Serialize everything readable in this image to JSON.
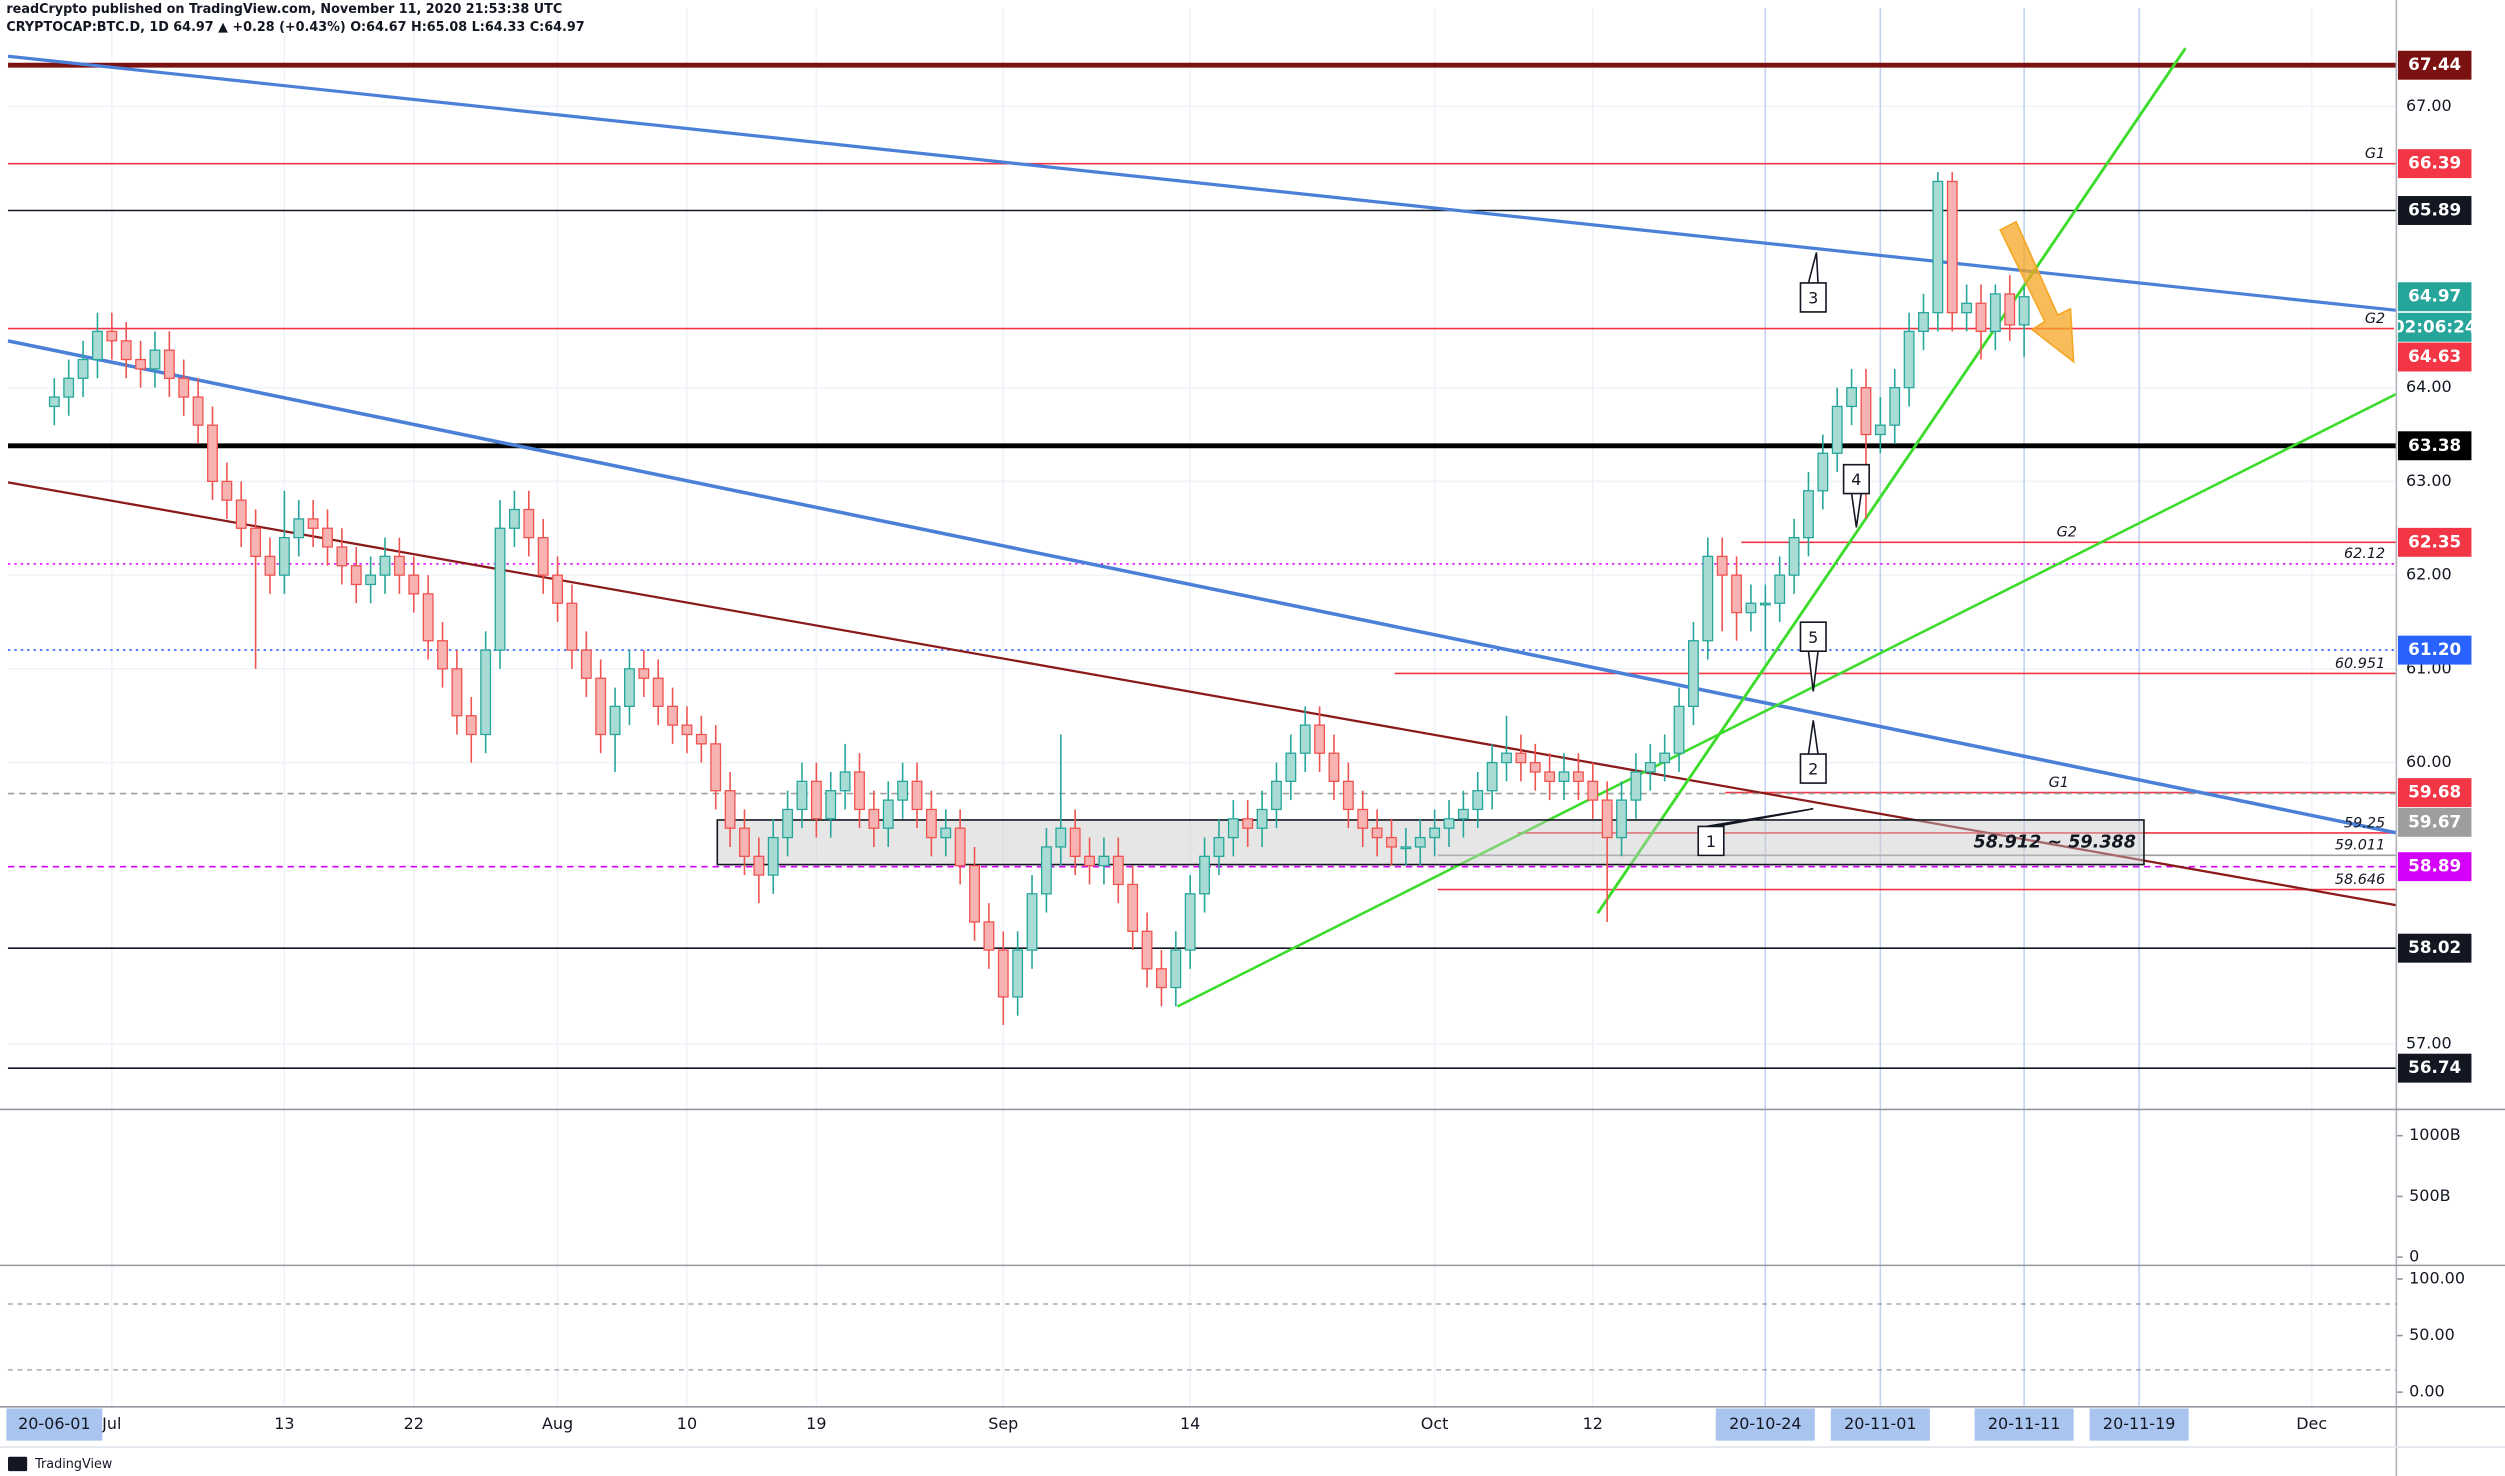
{
  "header": {
    "line1": "readCrypto published on TradingView.com, November 11, 2020 21:53:38 UTC",
    "line2": "CRYPTOCAP:BTC.D, 1D  64.97 ▲ +0.28 (+0.43%) O:64.67 H:65.08 L:64.33 C:64.97"
  },
  "footer": "TradingView",
  "chart_data": {
    "type": "candlestick",
    "up_color": "#26a69a",
    "up_fill": "#a8dbd3",
    "down_color": "#ef5350",
    "down_fill": "#f7b3b1",
    "ylim": [
      56.3,
      68.05
    ],
    "yticks": [
      {
        "value": 57,
        "label": "57.00"
      },
      {
        "value": 60,
        "label": "60.00"
      },
      {
        "value": 61,
        "label": "61.00"
      },
      {
        "value": 62,
        "label": "62.00"
      },
      {
        "value": 63,
        "label": "63.00"
      },
      {
        "value": 64,
        "label": "64.00"
      },
      {
        "value": 67,
        "label": "67.00"
      }
    ],
    "grid": true,
    "left_date_label": "20-06-01",
    "categories": [
      null,
      null,
      null,
      null,
      "Jul",
      null,
      null,
      null,
      null,
      null,
      null,
      null,
      null,
      null,
      null,
      null,
      "13",
      null,
      null,
      null,
      null,
      null,
      null,
      null,
      null,
      "22",
      null,
      null,
      null,
      null,
      null,
      null,
      null,
      null,
      null,
      "Aug",
      null,
      null,
      null,
      null,
      null,
      null,
      null,
      null,
      "10",
      null,
      null,
      null,
      null,
      null,
      null,
      null,
      null,
      "19",
      null,
      null,
      null,
      null,
      null,
      null,
      null,
      null,
      null,
      null,
      null,
      null,
      "Sep",
      null,
      null,
      null,
      null,
      null,
      null,
      null,
      null,
      null,
      null,
      null,
      null,
      "14",
      null,
      null,
      null,
      null,
      null,
      null,
      null,
      null,
      null,
      null,
      null,
      null,
      null,
      null,
      null,
      null,
      "Oct",
      null,
      null,
      null,
      null,
      null,
      null,
      null,
      null,
      null,
      null,
      "12",
      null,
      null,
      null,
      null,
      null,
      null,
      null,
      null,
      null,
      null,
      null,
      "20-10-24",
      null,
      null,
      null,
      null,
      null,
      null,
      null,
      "20-11-01",
      null,
      null,
      null,
      null,
      null,
      null,
      null,
      null,
      null,
      "20-11-11",
      null,
      null,
      null,
      null,
      null,
      null,
      null,
      "20-11-19",
      null,
      null,
      null,
      null,
      null,
      null,
      null,
      null,
      null,
      null,
      null,
      "Dec",
      null,
      null,
      null,
      null,
      null,
      null
    ],
    "candles": [
      [
        63.8,
        64.1,
        63.6,
        63.9
      ],
      [
        63.9,
        64.3,
        63.7,
        64.1
      ],
      [
        64.1,
        64.5,
        63.9,
        64.3
      ],
      [
        64.3,
        64.8,
        64.1,
        64.6
      ],
      [
        64.6,
        64.8,
        64.3,
        64.5
      ],
      [
        64.5,
        64.7,
        64.1,
        64.3
      ],
      [
        64.3,
        64.5,
        64.0,
        64.2
      ],
      [
        64.2,
        64.6,
        64.0,
        64.4
      ],
      [
        64.4,
        64.6,
        63.9,
        64.1
      ],
      [
        64.1,
        64.3,
        63.7,
        63.9
      ],
      [
        63.9,
        64.1,
        63.4,
        63.6
      ],
      [
        63.6,
        63.8,
        62.8,
        63.0
      ],
      [
        63.0,
        63.2,
        62.6,
        62.8
      ],
      [
        62.8,
        63.0,
        62.3,
        62.5
      ],
      [
        62.5,
        62.7,
        61.0,
        62.2
      ],
      [
        62.2,
        62.4,
        61.8,
        62.0
      ],
      [
        62.0,
        62.9,
        61.8,
        62.4
      ],
      [
        62.4,
        62.8,
        62.2,
        62.6
      ],
      [
        62.6,
        62.8,
        62.3,
        62.5
      ],
      [
        62.5,
        62.7,
        62.1,
        62.3
      ],
      [
        62.3,
        62.5,
        61.9,
        62.1
      ],
      [
        62.1,
        62.3,
        61.7,
        61.9
      ],
      [
        61.9,
        62.2,
        61.7,
        62.0
      ],
      [
        62.0,
        62.4,
        61.8,
        62.2
      ],
      [
        62.2,
        62.4,
        61.8,
        62.0
      ],
      [
        62.0,
        62.2,
        61.6,
        61.8
      ],
      [
        61.8,
        62.0,
        61.1,
        61.3
      ],
      [
        61.3,
        61.5,
        60.8,
        61.0
      ],
      [
        61.0,
        61.2,
        60.3,
        60.5
      ],
      [
        60.5,
        60.7,
        60.0,
        60.3
      ],
      [
        60.3,
        61.4,
        60.1,
        61.2
      ],
      [
        61.2,
        62.8,
        61.0,
        62.5
      ],
      [
        62.5,
        62.9,
        62.3,
        62.7
      ],
      [
        62.7,
        62.9,
        62.2,
        62.4
      ],
      [
        62.4,
        62.6,
        61.8,
        62.0
      ],
      [
        62.0,
        62.2,
        61.5,
        61.7
      ],
      [
        61.7,
        61.9,
        61.0,
        61.2
      ],
      [
        61.2,
        61.4,
        60.7,
        60.9
      ],
      [
        60.9,
        61.1,
        60.1,
        60.3
      ],
      [
        60.3,
        60.8,
        59.9,
        60.6
      ],
      [
        60.6,
        61.2,
        60.4,
        61.0
      ],
      [
        61.0,
        61.2,
        60.7,
        60.9
      ],
      [
        60.9,
        61.1,
        60.4,
        60.6
      ],
      [
        60.6,
        60.8,
        60.2,
        60.4
      ],
      [
        60.4,
        60.6,
        60.1,
        60.3
      ],
      [
        60.3,
        60.5,
        60.0,
        60.2
      ],
      [
        60.2,
        60.4,
        59.5,
        59.7
      ],
      [
        59.7,
        59.9,
        59.1,
        59.3
      ],
      [
        59.3,
        59.5,
        58.8,
        59.0
      ],
      [
        59.0,
        59.2,
        58.5,
        58.8
      ],
      [
        58.8,
        59.4,
        58.6,
        59.2
      ],
      [
        59.2,
        59.7,
        59.0,
        59.5
      ],
      [
        59.5,
        60.0,
        59.3,
        59.8
      ],
      [
        59.8,
        60.0,
        59.2,
        59.4
      ],
      [
        59.4,
        59.9,
        59.2,
        59.7
      ],
      [
        59.7,
        60.2,
        59.5,
        59.9
      ],
      [
        59.9,
        60.1,
        59.3,
        59.5
      ],
      [
        59.5,
        59.7,
        59.1,
        59.3
      ],
      [
        59.3,
        59.8,
        59.1,
        59.6
      ],
      [
        59.6,
        60.0,
        59.4,
        59.8
      ],
      [
        59.8,
        60.0,
        59.3,
        59.5
      ],
      [
        59.5,
        59.7,
        59.0,
        59.2
      ],
      [
        59.2,
        59.5,
        59.0,
        59.3
      ],
      [
        59.3,
        59.5,
        58.7,
        58.9
      ],
      [
        58.9,
        59.1,
        58.1,
        58.3
      ],
      [
        58.3,
        58.5,
        57.8,
        58.0
      ],
      [
        58.0,
        58.2,
        57.2,
        57.5
      ],
      [
        57.5,
        58.2,
        57.3,
        58.0
      ],
      [
        58.0,
        58.8,
        57.8,
        58.6
      ],
      [
        58.6,
        59.3,
        58.4,
        59.1
      ],
      [
        59.1,
        60.3,
        58.9,
        59.3
      ],
      [
        59.3,
        59.5,
        58.8,
        59.0
      ],
      [
        59.0,
        59.2,
        58.7,
        58.9
      ],
      [
        58.9,
        59.2,
        58.7,
        59.0
      ],
      [
        59.0,
        59.2,
        58.5,
        58.7
      ],
      [
        58.7,
        58.9,
        58.0,
        58.2
      ],
      [
        58.2,
        58.4,
        57.6,
        57.8
      ],
      [
        57.8,
        58.0,
        57.4,
        57.6
      ],
      [
        57.6,
        58.2,
        57.4,
        58.0
      ],
      [
        58.0,
        58.8,
        57.8,
        58.6
      ],
      [
        58.6,
        59.2,
        58.4,
        59.0
      ],
      [
        59.0,
        59.4,
        58.8,
        59.2
      ],
      [
        59.2,
        59.6,
        59.0,
        59.4
      ],
      [
        59.4,
        59.6,
        59.1,
        59.3
      ],
      [
        59.3,
        59.7,
        59.1,
        59.5
      ],
      [
        59.5,
        60.0,
        59.3,
        59.8
      ],
      [
        59.8,
        60.3,
        59.6,
        60.1
      ],
      [
        60.1,
        60.6,
        59.9,
        60.4
      ],
      [
        60.4,
        60.6,
        59.9,
        60.1
      ],
      [
        60.1,
        60.3,
        59.6,
        59.8
      ],
      [
        59.8,
        60.0,
        59.3,
        59.5
      ],
      [
        59.5,
        59.7,
        59.1,
        59.3
      ],
      [
        59.3,
        59.5,
        59.0,
        59.2
      ],
      [
        59.2,
        59.4,
        58.9,
        59.1
      ],
      [
        59.1,
        59.3,
        58.9,
        59.1
      ],
      [
        59.1,
        59.4,
        58.9,
        59.2
      ],
      [
        59.2,
        59.5,
        59.0,
        59.3
      ],
      [
        59.3,
        59.6,
        59.1,
        59.4
      ],
      [
        59.4,
        59.7,
        59.2,
        59.5
      ],
      [
        59.5,
        59.9,
        59.3,
        59.7
      ],
      [
        59.7,
        60.2,
        59.5,
        60.0
      ],
      [
        60.0,
        60.5,
        59.8,
        60.1
      ],
      [
        60.1,
        60.3,
        59.8,
        60.0
      ],
      [
        60.0,
        60.2,
        59.7,
        59.9
      ],
      [
        59.9,
        60.1,
        59.6,
        59.8
      ],
      [
        59.8,
        60.1,
        59.6,
        59.9
      ],
      [
        59.9,
        60.1,
        59.6,
        59.8
      ],
      [
        59.8,
        60.0,
        59.4,
        59.6
      ],
      [
        59.6,
        59.8,
        58.3,
        59.2
      ],
      [
        59.2,
        59.8,
        59.0,
        59.6
      ],
      [
        59.6,
        60.1,
        59.4,
        59.9
      ],
      [
        59.9,
        60.2,
        59.7,
        60.0
      ],
      [
        60.0,
        60.3,
        59.8,
        60.1
      ],
      [
        60.1,
        60.8,
        59.9,
        60.6
      ],
      [
        60.6,
        61.5,
        60.4,
        61.3
      ],
      [
        61.3,
        62.4,
        61.1,
        62.2
      ],
      [
        62.2,
        62.4,
        61.4,
        62.0
      ],
      [
        62.0,
        62.2,
        61.3,
        61.6
      ],
      [
        61.6,
        61.9,
        61.4,
        61.7
      ],
      [
        61.7,
        61.9,
        61.2,
        61.7
      ],
      [
        61.7,
        62.2,
        61.5,
        62.0
      ],
      [
        62.0,
        62.6,
        61.8,
        62.4
      ],
      [
        62.4,
        63.1,
        62.2,
        62.9
      ],
      [
        62.9,
        63.5,
        62.7,
        63.3
      ],
      [
        63.3,
        64.0,
        63.1,
        63.8
      ],
      [
        63.8,
        64.2,
        63.6,
        64.0
      ],
      [
        64.0,
        64.2,
        62.6,
        63.5
      ],
      [
        63.5,
        63.9,
        63.3,
        63.6
      ],
      [
        63.6,
        64.2,
        63.4,
        64.0
      ],
      [
        64.0,
        64.8,
        63.8,
        64.6
      ],
      [
        64.6,
        65.0,
        64.4,
        64.8
      ],
      [
        64.8,
        66.3,
        64.6,
        66.2
      ],
      [
        66.2,
        66.3,
        64.6,
        64.8
      ],
      [
        64.8,
        65.1,
        64.6,
        64.9
      ],
      [
        64.9,
        65.1,
        64.3,
        64.6
      ],
      [
        64.6,
        65.1,
        64.4,
        65.0
      ],
      [
        65.0,
        65.2,
        64.5,
        64.67
      ],
      [
        64.67,
        65.08,
        64.33,
        64.97
      ],
      null,
      null,
      null,
      null,
      null,
      null,
      null,
      null,
      null,
      null,
      null,
      null,
      null,
      null,
      null,
      null,
      null,
      null,
      null,
      null,
      null,
      null,
      null,
      null,
      null,
      null
    ],
    "last_price": {
      "value": 64.97,
      "countdown": "02:06:24",
      "color": "#26a69a"
    },
    "levels": [
      {
        "value": 67.44,
        "color": "#7b1111",
        "kind": "box",
        "width": 3
      },
      {
        "value": 66.39,
        "color": "#f23645",
        "kind": "box",
        "tag": "G1"
      },
      {
        "value": 65.89,
        "color": "#131722",
        "kind": "box"
      },
      {
        "value": 64.63,
        "color": "#f23645",
        "kind": "box",
        "tag": "G2"
      },
      {
        "value": 63.38,
        "color": "#000000",
        "kind": "box",
        "width": 3
      },
      {
        "value": 62.35,
        "color": "#f23645",
        "kind": "box",
        "tag": "G2"
      },
      {
        "value": 62.12,
        "color": "#d500f9",
        "kind": "text",
        "dash": "dot"
      },
      {
        "value": 61.2,
        "label": "61.20",
        "color": "#2962ff",
        "kind": "box",
        "dash": "dot"
      },
      {
        "value": 60.951,
        "color": "#f23645",
        "kind": "text"
      },
      {
        "value": 59.68,
        "color": "#f23645",
        "kind": "box",
        "tag": "G1"
      },
      {
        "value": 59.67,
        "color": "#9e9e9e",
        "kind": "box",
        "dash": "dash"
      },
      {
        "value": 59.25,
        "color": "#f23645",
        "kind": "text"
      },
      {
        "value": 59.011,
        "color": "#9e9e9e",
        "kind": "text"
      },
      {
        "value": 58.89,
        "color": "#d500f9",
        "kind": "box",
        "dash": "dash"
      },
      {
        "value": 58.646,
        "color": "#f23645",
        "kind": "text"
      },
      {
        "value": 58.02,
        "color": "#131722",
        "kind": "box"
      },
      {
        "value": 56.74,
        "color": "#131722",
        "kind": "box"
      }
    ],
    "zone_label": "58.912 ~ 59.388",
    "wave_labels": [
      "1",
      "2",
      "3",
      "4",
      "5"
    ],
    "indicator_panes": [
      {
        "ylim": [
          -68,
          1216
        ],
        "yticks": [
          0,
          {
            "value": 500,
            "label": "500B"
          },
          {
            "value": 1000,
            "label": "1000B"
          }
        ]
      },
      {
        "ylim": [
          -13,
          112
        ],
        "yticks": [
          {
            "value": 0,
            "label": "0.00"
          },
          {
            "value": 50,
            "label": "50.00"
          },
          {
            "value": 100,
            "label": "100.00"
          }
        ]
      }
    ]
  }
}
